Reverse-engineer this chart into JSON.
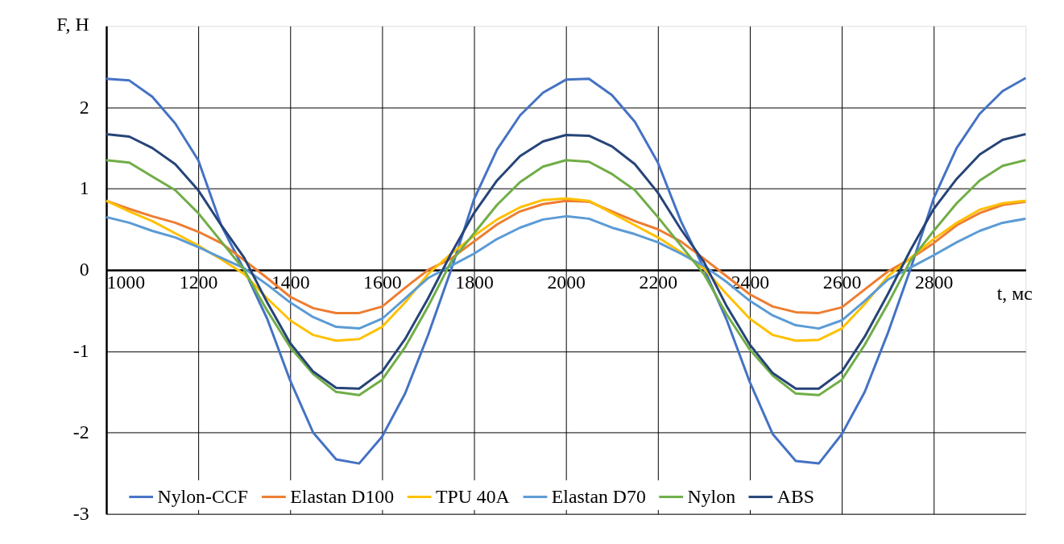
{
  "chart_data": {
    "type": "line",
    "xlabel": "t, мс",
    "ylabel": "F, H",
    "xlim": [
      1000,
      3000
    ],
    "ylim": [
      -3,
      3
    ],
    "xticks": [
      1000,
      1200,
      1400,
      1600,
      1800,
      2000,
      2200,
      2400,
      2600,
      2800
    ],
    "yticks": [
      -3,
      -2,
      -1,
      0,
      1,
      2
    ],
    "grid": true,
    "legend": "bottom",
    "marker": "none",
    "line_style": "solid",
    "x": [
      1000,
      1050,
      1100,
      1150,
      1200,
      1250,
      1300,
      1350,
      1400,
      1450,
      1500,
      1550,
      1600,
      1650,
      1700,
      1750,
      1800,
      1850,
      1900,
      1950,
      2000,
      2050,
      2100,
      2150,
      2200,
      2250,
      2300,
      2350,
      2400,
      2450,
      2500,
      2550,
      2600,
      2650,
      2700,
      2750,
      2800,
      2850,
      2900,
      2950,
      3000
    ],
    "series": [
      {
        "name": "Nylon-CCF",
        "color": "#4472c4",
        "values": [
          2.35,
          2.33,
          2.13,
          1.8,
          1.35,
          0.55,
          0.0,
          -0.6,
          -1.36,
          -2.0,
          -2.33,
          -2.38,
          -2.05,
          -1.52,
          -0.8,
          0.0,
          0.87,
          1.48,
          1.9,
          2.18,
          2.34,
          2.35,
          2.15,
          1.82,
          1.32,
          0.6,
          0.02,
          -0.62,
          -1.38,
          -2.02,
          -2.35,
          -2.38,
          -2.02,
          -1.5,
          -0.78,
          0.02,
          0.88,
          1.5,
          1.92,
          2.2,
          2.36
        ]
      },
      {
        "name": "Elastan D100",
        "color": "#ed7d31",
        "values": [
          0.85,
          0.75,
          0.66,
          0.58,
          0.47,
          0.33,
          0.12,
          -0.1,
          -0.33,
          -0.47,
          -0.53,
          -0.53,
          -0.45,
          -0.22,
          0.0,
          0.14,
          0.35,
          0.56,
          0.72,
          0.81,
          0.85,
          0.84,
          0.72,
          0.6,
          0.5,
          0.35,
          0.14,
          -0.08,
          -0.3,
          -0.45,
          -0.52,
          -0.53,
          -0.46,
          -0.24,
          -0.02,
          0.14,
          0.33,
          0.55,
          0.7,
          0.8,
          0.84
        ]
      },
      {
        "name": "TPU 40A",
        "color": "#ffc000",
        "values": [
          0.85,
          0.72,
          0.6,
          0.45,
          0.3,
          0.13,
          -0.05,
          -0.35,
          -0.62,
          -0.8,
          -0.87,
          -0.85,
          -0.7,
          -0.4,
          -0.05,
          0.2,
          0.42,
          0.62,
          0.77,
          0.86,
          0.88,
          0.85,
          0.7,
          0.55,
          0.4,
          0.22,
          0.02,
          -0.3,
          -0.6,
          -0.8,
          -0.87,
          -0.86,
          -0.72,
          -0.42,
          -0.08,
          0.15,
          0.38,
          0.58,
          0.74,
          0.82,
          0.85
        ]
      },
      {
        "name": "Elastan D70",
        "color": "#5b9bd5",
        "values": [
          0.65,
          0.58,
          0.48,
          0.4,
          0.28,
          0.15,
          0.02,
          -0.18,
          -0.4,
          -0.58,
          -0.7,
          -0.72,
          -0.6,
          -0.35,
          -0.1,
          0.05,
          0.2,
          0.38,
          0.52,
          0.62,
          0.66,
          0.63,
          0.52,
          0.44,
          0.34,
          0.2,
          0.05,
          -0.15,
          -0.38,
          -0.56,
          -0.68,
          -0.72,
          -0.62,
          -0.38,
          -0.12,
          0.03,
          0.18,
          0.34,
          0.48,
          0.58,
          0.63
        ]
      },
      {
        "name": "Nylon",
        "color": "#70ad47",
        "values": [
          1.35,
          1.32,
          1.15,
          0.98,
          0.7,
          0.35,
          0.0,
          -0.5,
          -0.95,
          -1.28,
          -1.5,
          -1.54,
          -1.35,
          -0.95,
          -0.45,
          0.1,
          0.45,
          0.8,
          1.08,
          1.27,
          1.35,
          1.33,
          1.18,
          0.98,
          0.65,
          0.3,
          -0.05,
          -0.55,
          -0.98,
          -1.3,
          -1.52,
          -1.54,
          -1.35,
          -0.92,
          -0.42,
          0.12,
          0.48,
          0.82,
          1.1,
          1.28,
          1.35
        ]
      },
      {
        "name": "ABS",
        "color": "#264478",
        "values": [
          1.67,
          1.64,
          1.5,
          1.3,
          0.98,
          0.55,
          0.15,
          -0.4,
          -0.9,
          -1.25,
          -1.45,
          -1.46,
          -1.25,
          -0.85,
          -0.35,
          0.2,
          0.7,
          1.1,
          1.4,
          1.58,
          1.66,
          1.65,
          1.52,
          1.3,
          0.95,
          0.5,
          0.1,
          -0.45,
          -0.92,
          -1.27,
          -1.46,
          -1.46,
          -1.25,
          -0.82,
          -0.3,
          0.25,
          0.75,
          1.12,
          1.42,
          1.6,
          1.67
        ]
      }
    ]
  }
}
